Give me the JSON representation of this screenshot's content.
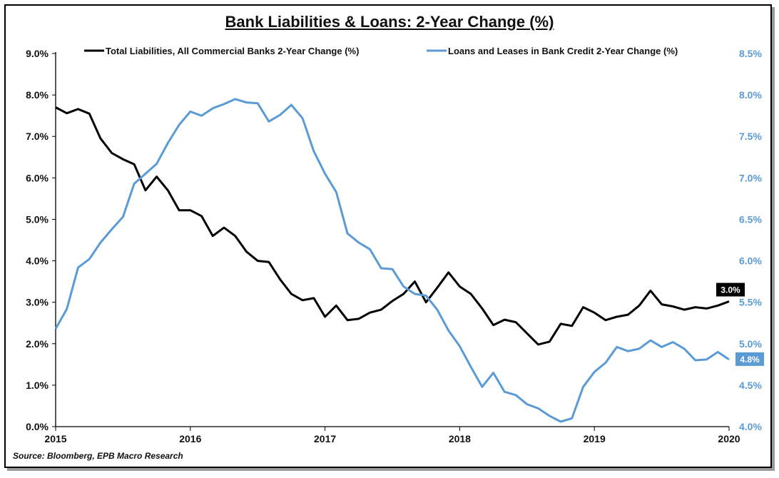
{
  "chart_data": {
    "type": "line",
    "title": "Bank Liabilities & Loans: 2-Year Change (%)",
    "source": "Source: Bloomberg, EPB Macro Research",
    "x_ticks": [
      "2015",
      "2016",
      "2017",
      "2018",
      "2019",
      "2020"
    ],
    "x_range": [
      2015.0,
      2020.0
    ],
    "y_left": {
      "range": [
        0,
        9
      ],
      "ticks": [
        "0.0%",
        "1.0%",
        "2.0%",
        "3.0%",
        "4.0%",
        "5.0%",
        "6.0%",
        "7.0%",
        "8.0%",
        "9.0%"
      ],
      "color": "#000000"
    },
    "y_right": {
      "range": [
        4.0,
        8.5
      ],
      "ticks": [
        "4.0%",
        "4.5%",
        "5.0%",
        "5.5%",
        "6.0%",
        "6.5%",
        "7.0%",
        "7.5%",
        "8.0%",
        "8.5%"
      ],
      "color": "#5b9bd5"
    },
    "legend_position": "top",
    "grid": false,
    "series": [
      {
        "name": "Total Liabilities, All Commercial Banks 2-Year Change (%)",
        "axis": "left",
        "color": "#000000",
        "end_label": "3.0%",
        "points": [
          [
            2015.0,
            7.7
          ],
          [
            2015.083,
            7.56
          ],
          [
            2015.167,
            7.66
          ],
          [
            2015.25,
            7.55
          ],
          [
            2015.333,
            6.95
          ],
          [
            2015.417,
            6.6
          ],
          [
            2015.5,
            6.45
          ],
          [
            2015.583,
            6.33
          ],
          [
            2015.667,
            5.7
          ],
          [
            2015.75,
            6.03
          ],
          [
            2015.833,
            5.7
          ],
          [
            2015.917,
            5.22
          ],
          [
            2016.0,
            5.22
          ],
          [
            2016.083,
            5.08
          ],
          [
            2016.167,
            4.6
          ],
          [
            2016.25,
            4.8
          ],
          [
            2016.333,
            4.6
          ],
          [
            2016.417,
            4.22
          ],
          [
            2016.5,
            4.0
          ],
          [
            2016.583,
            3.97
          ],
          [
            2016.667,
            3.55
          ],
          [
            2016.75,
            3.2
          ],
          [
            2016.833,
            3.05
          ],
          [
            2016.917,
            3.1
          ],
          [
            2017.0,
            2.65
          ],
          [
            2017.083,
            2.92
          ],
          [
            2017.167,
            2.57
          ],
          [
            2017.25,
            2.6
          ],
          [
            2017.333,
            2.75
          ],
          [
            2017.417,
            2.82
          ],
          [
            2017.5,
            3.03
          ],
          [
            2017.583,
            3.2
          ],
          [
            2017.667,
            3.5
          ],
          [
            2017.75,
            3.0
          ],
          [
            2017.833,
            3.35
          ],
          [
            2017.917,
            3.72
          ],
          [
            2018.0,
            3.38
          ],
          [
            2018.083,
            3.2
          ],
          [
            2018.167,
            2.85
          ],
          [
            2018.25,
            2.45
          ],
          [
            2018.333,
            2.58
          ],
          [
            2018.417,
            2.52
          ],
          [
            2018.5,
            2.25
          ],
          [
            2018.583,
            1.98
          ],
          [
            2018.667,
            2.05
          ],
          [
            2018.75,
            2.48
          ],
          [
            2018.833,
            2.43
          ],
          [
            2018.917,
            2.88
          ],
          [
            2019.0,
            2.75
          ],
          [
            2019.083,
            2.57
          ],
          [
            2019.167,
            2.65
          ],
          [
            2019.25,
            2.7
          ],
          [
            2019.333,
            2.92
          ],
          [
            2019.417,
            3.28
          ],
          [
            2019.5,
            2.95
          ],
          [
            2019.583,
            2.9
          ],
          [
            2019.667,
            2.82
          ],
          [
            2019.75,
            2.88
          ],
          [
            2019.833,
            2.85
          ],
          [
            2019.917,
            2.92
          ],
          [
            2020.0,
            3.02
          ]
        ]
      },
      {
        "name": "Loans and Leases in Bank Credit 2-Year Change (%)",
        "axis": "right",
        "color": "#5b9bd5",
        "end_label": "4.8%",
        "points": [
          [
            2015.0,
            5.18
          ],
          [
            2015.083,
            5.42
          ],
          [
            2015.167,
            5.92
          ],
          [
            2015.25,
            6.02
          ],
          [
            2015.333,
            6.22
          ],
          [
            2015.417,
            6.38
          ],
          [
            2015.5,
            6.53
          ],
          [
            2015.583,
            6.93
          ],
          [
            2015.667,
            7.05
          ],
          [
            2015.75,
            7.17
          ],
          [
            2015.833,
            7.42
          ],
          [
            2015.917,
            7.64
          ],
          [
            2016.0,
            7.8
          ],
          [
            2016.083,
            7.75
          ],
          [
            2016.167,
            7.84
          ],
          [
            2016.25,
            7.89
          ],
          [
            2016.333,
            7.95
          ],
          [
            2016.417,
            7.91
          ],
          [
            2016.5,
            7.9
          ],
          [
            2016.583,
            7.68
          ],
          [
            2016.667,
            7.76
          ],
          [
            2016.75,
            7.88
          ],
          [
            2016.833,
            7.72
          ],
          [
            2016.917,
            7.32
          ],
          [
            2017.0,
            7.05
          ],
          [
            2017.083,
            6.83
          ],
          [
            2017.167,
            6.33
          ],
          [
            2017.25,
            6.22
          ],
          [
            2017.333,
            6.14
          ],
          [
            2017.417,
            5.91
          ],
          [
            2017.5,
            5.9
          ],
          [
            2017.583,
            5.69
          ],
          [
            2017.667,
            5.6
          ],
          [
            2017.75,
            5.58
          ],
          [
            2017.833,
            5.41
          ],
          [
            2017.917,
            5.16
          ],
          [
            2018.0,
            4.97
          ],
          [
            2018.083,
            4.72
          ],
          [
            2018.167,
            4.48
          ],
          [
            2018.25,
            4.65
          ],
          [
            2018.333,
            4.42
          ],
          [
            2018.417,
            4.38
          ],
          [
            2018.5,
            4.27
          ],
          [
            2018.583,
            4.22
          ],
          [
            2018.667,
            4.13
          ],
          [
            2018.75,
            4.06
          ],
          [
            2018.833,
            4.1
          ],
          [
            2018.917,
            4.48
          ],
          [
            2019.0,
            4.66
          ],
          [
            2019.083,
            4.77
          ],
          [
            2019.167,
            4.96
          ],
          [
            2019.25,
            4.91
          ],
          [
            2019.333,
            4.94
          ],
          [
            2019.417,
            5.04
          ],
          [
            2019.5,
            4.96
          ],
          [
            2019.583,
            5.02
          ],
          [
            2019.667,
            4.94
          ],
          [
            2019.75,
            4.8
          ],
          [
            2019.833,
            4.81
          ],
          [
            2019.917,
            4.9
          ],
          [
            2020.0,
            4.81
          ]
        ]
      }
    ]
  }
}
